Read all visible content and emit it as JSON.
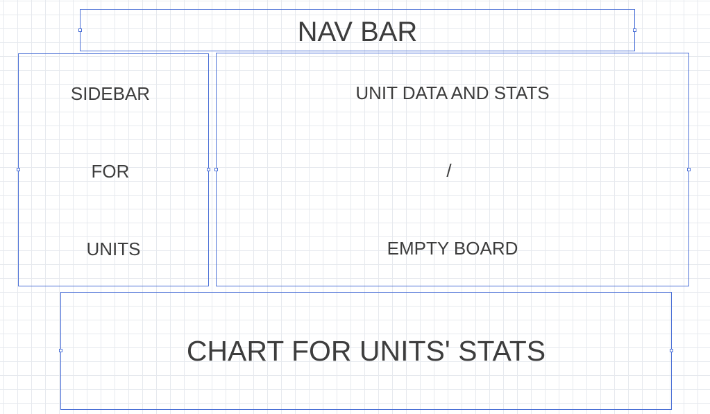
{
  "nav_bar": {
    "label": "NAV BAR"
  },
  "sidebar": {
    "lines": [
      "SIDEBAR",
      "FOR",
      "UNITS"
    ]
  },
  "main_panel": {
    "lines": [
      "UNIT DATA AND STATS",
      "/",
      "EMPTY BOARD"
    ]
  },
  "chart_panel": {
    "label": "CHART FOR UNITS' STATS"
  },
  "colors": {
    "box_border": "#4a6fd6",
    "text": "#3d3d3d",
    "grid": "#e6e9ee",
    "background": "#ffffff"
  }
}
